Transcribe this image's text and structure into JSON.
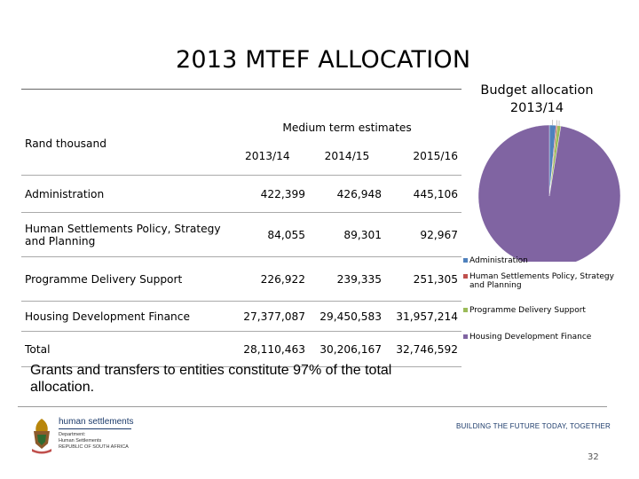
{
  "slide": {
    "title": "2013 MTEF ALLOCATION",
    "footer_note": "Grants and transfers to entities constitute 97% of the total allocation.",
    "page_number": "32"
  },
  "table": {
    "group_header": "Medium term estimates",
    "unit_label": "Rand thousand",
    "years": [
      "2013/14",
      "2014/15",
      "2015/16"
    ],
    "rows": [
      {
        "name": "Administration",
        "values": [
          "422,399",
          "426,948",
          "445,106"
        ]
      },
      {
        "name": "Human Settlements Policy, Strategy and Planning",
        "values": [
          "84,055",
          "89,301",
          "92,967"
        ]
      },
      {
        "name": "Programme Delivery Support",
        "values": [
          "226,922",
          "239,335",
          "251,305"
        ]
      },
      {
        "name": "Housing Development Finance",
        "values": [
          "27,377,087",
          "29,450,583",
          "31,957,214"
        ]
      },
      {
        "name": "Total",
        "values": [
          "28,110,463",
          "30,206,167",
          "32,746,592"
        ]
      }
    ]
  },
  "chart_data": {
    "type": "pie",
    "title": "Budget allocation 2013/14",
    "categories": [
      "Administration",
      "Human Settlements Policy, Strategy and Planning",
      "Programme Delivery Support",
      "Housing Development Finance"
    ],
    "values": [
      1.5,
      0.3,
      0.8,
      97.4
    ],
    "labels": [
      "1.5%",
      "0.3%",
      "0.8%",
      "97.4%"
    ],
    "colors": [
      "#4F81BD",
      "#C0504D",
      "#9BBB59",
      "#8064A2"
    ],
    "legend_position": "bottom"
  },
  "branding": {
    "department_name": "human settlements",
    "department_lines": [
      "Department:",
      "Human Settlements",
      "REPUBLIC OF SOUTH AFRICA"
    ],
    "tagline": "BUILDING THE FUTURE TODAY, TOGETHER"
  }
}
